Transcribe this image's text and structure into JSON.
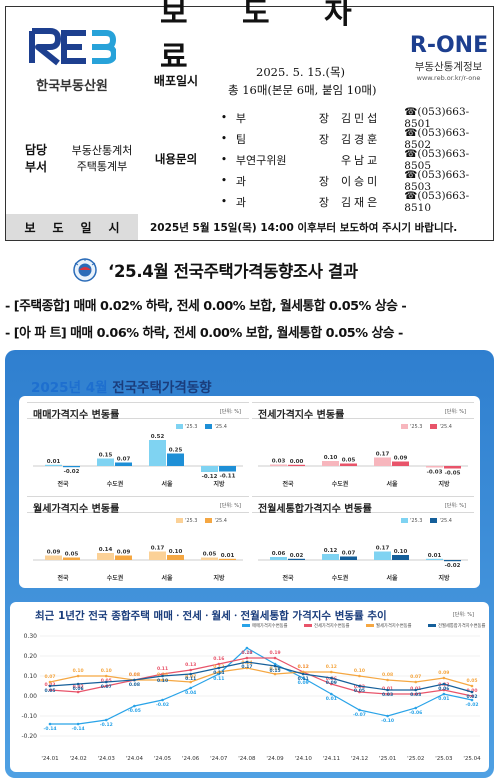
{
  "header": {
    "title": "보 도 자 료",
    "release_label": "배포일시",
    "release_date": "2025. 5. 15.(목)",
    "release_pages": "총 16매(본문 6매, 붙임 10매)",
    "left_logo_sub": "한국부동산원",
    "right_logo_text": "R-ONE",
    "right_logo_sub": "부동산통계정보",
    "right_logo_url": "www.reb.or.kr/r-one",
    "dept_label_1": "담당",
    "dept_label_2": "부서",
    "dept_name_1": "부동산통계처",
    "dept_name_2": "주택통계부",
    "contact_label": "내용문의",
    "contacts": [
      {
        "pos1": "부",
        "pos2": "장",
        "name": "김민섭",
        "phone": "☎(053)663-8501"
      },
      {
        "pos1": "팀",
        "pos2": "장",
        "name": "김경훈",
        "phone": "☎(053)663-8502"
      },
      {
        "pos1": "부연구위원",
        "pos2": "",
        "name": "우남교",
        "phone": "☎(053)663-8505"
      },
      {
        "pos1": "과",
        "pos2": "장",
        "name": "이승미",
        "phone": "☎(053)663-8503"
      },
      {
        "pos1": "과",
        "pos2": "장",
        "name": "김재은",
        "phone": "☎(053)663-8510"
      }
    ],
    "embargo_label": [
      "보",
      "도",
      "일",
      "시"
    ],
    "embargo_text": "2025년 5월 15일(목) 14:00 이후부터 보도하여 주시기 바랍니다."
  },
  "main_title": "‘25.4월 전국주택가격동향조사 결과",
  "sub1": "- [주택종합] 매매 0.02% 하락, 전세 0.00% 보합, 월세통합 0.05% 상승 -",
  "sub2": "- [아 파 트] 매매 0.06% 하락, 전세 0.00% 보합, 월세통합 0.05% 상승 -",
  "infographic": {
    "title_year": "2025년 4월",
    "title_rest": " 전국주택가격동향",
    "unit": "[단위: %]",
    "legend": [
      "'25.3",
      "'25.4"
    ],
    "trend_title": "최근 1년간 전국 종합주택 매매ㆍ전세ㆍ월세ㆍ전월세통합 가격지수 변동률 추이",
    "trend_unit": "[단위: %]"
  },
  "chart_data": [
    {
      "type": "bar",
      "title": "매매가격지수 변동률",
      "categories": [
        "전국",
        "수도권",
        "서울",
        "지방"
      ],
      "series": [
        {
          "name": "'25.3",
          "values": [
            0.01,
            0.15,
            0.52,
            -0.12
          ]
        },
        {
          "name": "'25.4",
          "values": [
            -0.02,
            0.07,
            0.25,
            -0.11
          ]
        }
      ],
      "colors": [
        "#7fd3f2",
        "#1e8fd6"
      ]
    },
    {
      "type": "bar",
      "title": "전세가격지수 변동률",
      "categories": [
        "전국",
        "수도권",
        "서울",
        "지방"
      ],
      "series": [
        {
          "name": "'25.3",
          "values": [
            0.03,
            0.1,
            0.17,
            -0.03
          ]
        },
        {
          "name": "'25.4",
          "values": [
            0.0,
            0.05,
            0.09,
            -0.05
          ]
        }
      ],
      "colors": [
        "#f7b6bd",
        "#e8546a"
      ]
    },
    {
      "type": "bar",
      "title": "월세가격지수 변동률",
      "categories": [
        "전국",
        "수도권",
        "서울",
        "지방"
      ],
      "series": [
        {
          "name": "'25.3",
          "values": [
            0.09,
            0.14,
            0.17,
            0.05
          ]
        },
        {
          "name": "'25.4",
          "values": [
            0.05,
            0.09,
            0.1,
            0.01
          ]
        }
      ],
      "colors": [
        "#fbd197",
        "#f5a742"
      ]
    },
    {
      "type": "bar",
      "title": "전월세통합가격지수 변동률",
      "categories": [
        "전국",
        "수도권",
        "서울",
        "지방"
      ],
      "series": [
        {
          "name": "'25.3",
          "values": [
            0.06,
            0.12,
            0.17,
            0.01
          ]
        },
        {
          "name": "'25.4",
          "values": [
            0.02,
            0.07,
            0.1,
            -0.02
          ]
        }
      ],
      "colors": [
        "#7fd3f2",
        "#155f9a"
      ]
    },
    {
      "type": "line",
      "title": "최근 1년간 전국 종합주택 매매ㆍ전세ㆍ월세ㆍ전월세통합 가격지수 변동률 추이",
      "x": [
        "'24.01",
        "'24.02",
        "'24.03",
        "'24.04",
        "'24.05",
        "'24.06",
        "'24.07",
        "'24.08",
        "'24.09",
        "'24.10",
        "'24.11",
        "'24.12",
        "'25.01",
        "'25.02",
        "'25.03",
        "'25.04"
      ],
      "ylim": [
        -0.2,
        0.3
      ],
      "yticks": [
        -0.2,
        -0.1,
        0.0,
        0.1,
        0.2,
        0.3
      ],
      "series": [
        {
          "name": "매매가격지수변동률",
          "color": "#29a3e8",
          "values": [
            -0.14,
            -0.14,
            -0.12,
            -0.05,
            -0.02,
            0.04,
            0.11,
            0.24,
            0.16,
            0.09,
            0.01,
            -0.07,
            -0.1,
            -0.06,
            0.01,
            -0.02
          ]
        },
        {
          "name": "전세가격지수변동률",
          "color": "#e8546a",
          "values": [
            0.03,
            0.02,
            0.05,
            0.08,
            0.11,
            0.13,
            0.16,
            0.19,
            0.19,
            0.12,
            0.06,
            0.02,
            0.01,
            0.01,
            0.03,
            0.0
          ]
        },
        {
          "name": "월세가격지수변동률",
          "color": "#f5a742",
          "values": [
            0.07,
            0.1,
            0.1,
            0.08,
            0.08,
            0.07,
            0.12,
            0.14,
            0.11,
            0.12,
            0.12,
            0.1,
            0.08,
            0.07,
            0.09,
            0.05
          ]
        },
        {
          "name": "전월세통합가격지수변동률",
          "color": "#155f9a",
          "values": [
            0.05,
            0.06,
            0.07,
            0.08,
            0.1,
            0.11,
            0.14,
            0.17,
            0.15,
            0.11,
            0.09,
            0.05,
            0.03,
            0.03,
            0.06,
            0.02
          ]
        }
      ]
    }
  ]
}
